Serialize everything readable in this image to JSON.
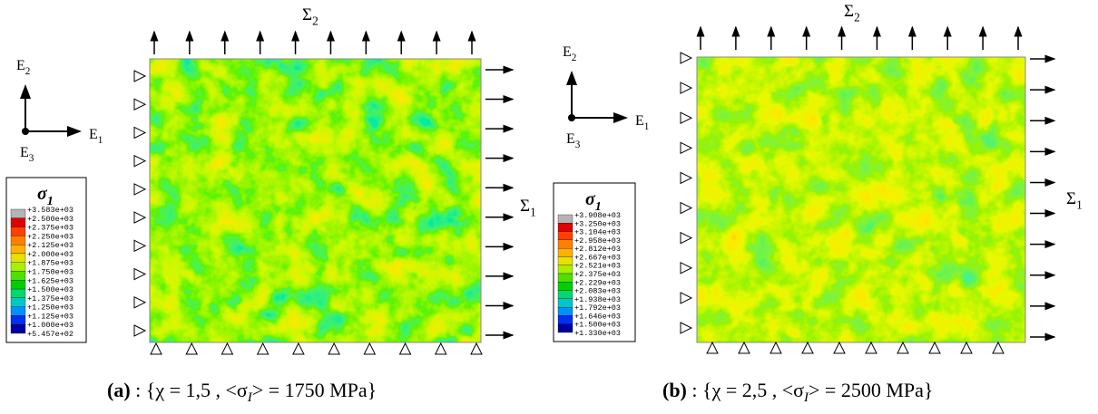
{
  "panels": [
    {
      "axes": {
        "e1": {
          "base": "E",
          "sub": "1"
        },
        "e2": {
          "base": "E",
          "sub": "2"
        },
        "e3": {
          "base": "E",
          "sub": "3"
        }
      },
      "loads": {
        "top": {
          "base": "Σ",
          "sub": "2"
        },
        "right": {
          "base": "Σ",
          "sub": "1"
        }
      },
      "legend": {
        "title": {
          "base": "σ",
          "sub": "1"
        },
        "labels": [
          "+3.583e+03",
          "+2.500e+03",
          "+2.375e+03",
          "+2.250e+03",
          "+2.125e+03",
          "+2.000e+03",
          "+1.875e+03",
          "+1.750e+03",
          "+1.625e+03",
          "+1.500e+03",
          "+1.375e+03",
          "+1.250e+03",
          "+1.125e+03",
          "+1.000e+03",
          "+5.457e+02"
        ],
        "colors": [
          "#b4b4b4",
          "#e00000",
          "#ff4000",
          "#ff8000",
          "#ffb000",
          "#e8e000",
          "#a8f000",
          "#50e000",
          "#00d000",
          "#00d870",
          "#00c8c8",
          "#0090ff",
          "#0030f0",
          "#0000a0"
        ]
      },
      "caption": {
        "label": "(a)",
        "pre": " : {χ = 1,5 , <σ",
        "sub": "I",
        "post": "> = 1750 MPa}"
      }
    },
    {
      "axes": {
        "e1": {
          "base": "E",
          "sub": "1"
        },
        "e2": {
          "base": "E",
          "sub": "2"
        },
        "e3": {
          "base": "E",
          "sub": "3"
        }
      },
      "loads": {
        "top": {
          "base": "Σ",
          "sub": "2"
        },
        "right": {
          "base": "Σ",
          "sub": "1"
        }
      },
      "legend": {
        "title": {
          "base": "σ",
          "sub": "1"
        },
        "labels": [
          "+3.908e+03",
          "+3.250e+03",
          "+3.104e+03",
          "+2.958e+03",
          "+2.812e+03",
          "+2.667e+03",
          "+2.521e+03",
          "+2.375e+03",
          "+2.229e+03",
          "+2.083e+03",
          "+1.938e+03",
          "+1.792e+03",
          "+1.646e+03",
          "+1.500e+03",
          "+1.330e+03"
        ],
        "colors": [
          "#b4b4b4",
          "#e00000",
          "#ff4000",
          "#ff8000",
          "#ffb000",
          "#e8e000",
          "#a8f000",
          "#50e000",
          "#00d000",
          "#00d870",
          "#00c8c8",
          "#0090ff",
          "#0030f0",
          "#0000a0"
        ]
      },
      "caption": {
        "label": "(b)",
        "pre": " : {χ = 2,5 , <σ",
        "sub": "I",
        "post": "> = 2500 MPa}"
      }
    }
  ]
}
